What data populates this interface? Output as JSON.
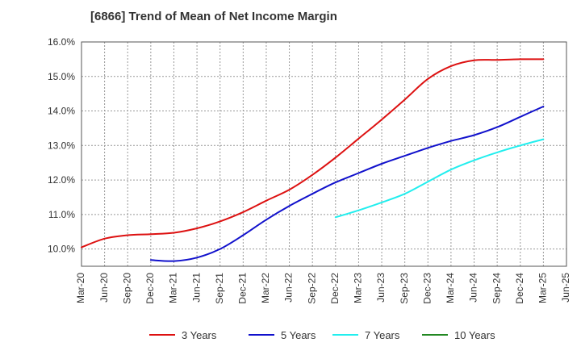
{
  "chart_data": {
    "type": "line",
    "title": "[6866]  Trend of Mean of Net Income Margin",
    "xlabel": "",
    "ylabel": "",
    "ylim": [
      9.5,
      16.0
    ],
    "yticks": [
      10.0,
      11.0,
      12.0,
      13.0,
      14.0,
      15.0,
      16.0
    ],
    "ytick_labels": [
      "10.0%",
      "11.0%",
      "12.0%",
      "13.0%",
      "14.0%",
      "15.0%",
      "16.0%"
    ],
    "x": [
      "Mar-20",
      "Jun-20",
      "Sep-20",
      "Dec-20",
      "Mar-21",
      "Jun-21",
      "Sep-21",
      "Dec-21",
      "Mar-22",
      "Jun-22",
      "Sep-22",
      "Dec-22",
      "Mar-23",
      "Jun-23",
      "Sep-23",
      "Dec-23",
      "Mar-24",
      "Jun-24",
      "Sep-24",
      "Dec-24",
      "Mar-25",
      "Jun-25"
    ],
    "grid": true,
    "legend_position": "bottom",
    "series": [
      {
        "name": "3 Years",
        "color": "#dd1111",
        "values": [
          10.05,
          10.3,
          10.4,
          10.43,
          10.47,
          10.6,
          10.8,
          11.07,
          11.4,
          11.72,
          12.15,
          12.65,
          13.2,
          13.75,
          14.33,
          14.93,
          15.3,
          15.47,
          15.48,
          15.5,
          15.5,
          null
        ]
      },
      {
        "name": "5 Years",
        "color": "#1111cc",
        "values": [
          null,
          null,
          null,
          9.68,
          9.65,
          9.75,
          10.0,
          10.4,
          10.85,
          11.25,
          11.6,
          11.93,
          12.2,
          12.47,
          12.7,
          12.93,
          13.13,
          13.3,
          13.53,
          13.83,
          14.13,
          null
        ]
      },
      {
        "name": "7 Years",
        "color": "#22eeee",
        "values": [
          null,
          null,
          null,
          null,
          null,
          null,
          null,
          null,
          null,
          null,
          null,
          10.92,
          11.12,
          11.35,
          11.6,
          11.95,
          12.3,
          12.57,
          12.8,
          13.0,
          13.18,
          null
        ]
      },
      {
        "name": "10 Years",
        "color": "#228822",
        "values": [
          null,
          null,
          null,
          null,
          null,
          null,
          null,
          null,
          null,
          null,
          null,
          null,
          null,
          null,
          null,
          null,
          null,
          null,
          null,
          null,
          null,
          null
        ]
      }
    ]
  }
}
